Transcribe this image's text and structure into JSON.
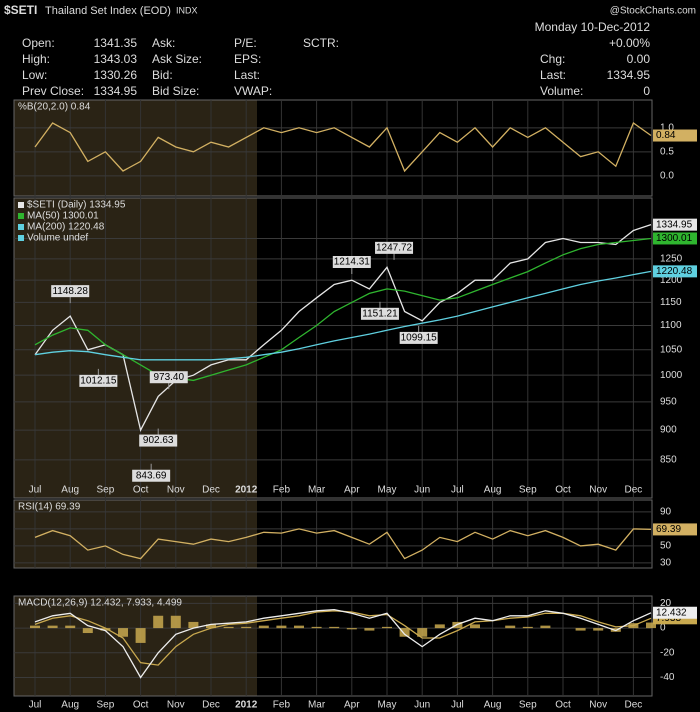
{
  "header": {
    "symbol": "$SETI",
    "name": "Thailand Set Index (EOD)",
    "exchange": "INDX",
    "source": "@StockCharts.com",
    "date": "Monday 10-Dec-2012",
    "change_pct": "+0.00%",
    "columns": [
      [
        {
          "label": "Open:",
          "value": "1341.35"
        },
        {
          "label": "High:",
          "value": "1343.03"
        },
        {
          "label": "Low:",
          "value": "1330.26"
        },
        {
          "label": "Prev Close:",
          "value": "1334.95"
        }
      ],
      [
        {
          "label": "Ask:"
        },
        {
          "label": "Ask Size:"
        },
        {
          "label": "Bid:"
        },
        {
          "label": "Bid Size:"
        }
      ],
      [
        {
          "label": "P/E:"
        },
        {
          "label": "EPS:"
        },
        {
          "label": "Last:"
        },
        {
          "label": "VWAP:"
        }
      ],
      [
        {
          "label": "SCTR:"
        }
      ]
    ],
    "right": [
      {
        "label": "Chg:",
        "value": "0.00"
      },
      {
        "label": "Last:",
        "value": "1334.95"
      },
      {
        "label": "Volume:",
        "value": "0"
      }
    ]
  },
  "chart_data": [
    {
      "type": "line",
      "title": "%B(20,2.0) 0.84",
      "color": "#d2b062",
      "values": [
        0.6,
        1.1,
        0.9,
        0.3,
        0.5,
        0.1,
        0.3,
        0.8,
        0.6,
        0.5,
        0.7,
        0.6,
        0.8,
        1.0,
        0.9,
        1.0,
        0.9,
        1.0,
        0.8,
        0.6,
        1.0,
        0.1,
        0.5,
        0.9,
        0.7,
        1.0,
        0.6,
        1.0,
        0.8,
        1.0,
        0.7,
        0.4,
        0.5,
        0.2,
        1.1,
        0.84
      ],
      "ylim": [
        -0.42,
        1.58
      ],
      "yticks": [
        {
          "value": 1,
          "label": "1.0"
        },
        0.5,
        {
          "value": 0,
          "label": "0.0"
        }
      ],
      "grid": true
    },
    {
      "type": "line",
      "log_scale": true,
      "grid": true,
      "categories": [
        "Jul",
        null,
        "Aug",
        null,
        "Sep",
        null,
        "Oct",
        null,
        "Nov",
        null,
        "Dec",
        null,
        "2012",
        null,
        "Feb",
        null,
        "Mar",
        null,
        "Apr",
        null,
        "May",
        null,
        "Jun",
        null,
        "Jul",
        null,
        "Aug",
        null,
        "Sep",
        null,
        "Oct",
        null,
        "Nov",
        null,
        "Dec",
        null
      ],
      "series": [
        {
          "name": "$SETI (Daily) 1334.95",
          "color": "#e6e6e6",
          "values": [
            1040,
            1090,
            1120,
            1050,
            1060,
            1040,
            900,
            960,
            990,
            1000,
            1020,
            1030,
            1030,
            1060,
            1090,
            1130,
            1160,
            1190,
            1200,
            1180,
            1230,
            1130,
            1110,
            1150,
            1170,
            1200,
            1200,
            1240,
            1250,
            1290,
            1300,
            1290,
            1290,
            1285,
            1320,
            1334.95
          ]
        },
        {
          "name": "MA(50) 1300.01",
          "color": "#2fb52f",
          "values": [
            1060,
            1080,
            1095,
            1090,
            1060,
            1040,
            1020,
            1000,
            995,
            990,
            1000,
            1010,
            1020,
            1035,
            1050,
            1075,
            1100,
            1130,
            1150,
            1170,
            1180,
            1175,
            1165,
            1155,
            1160,
            1175,
            1190,
            1205,
            1220,
            1240,
            1260,
            1275,
            1285,
            1290,
            1295,
            1300.01
          ]
        },
        {
          "name": "MA(200) 1220.48",
          "color": "#5fd0e0",
          "values": [
            1040,
            1045,
            1048,
            1046,
            1040,
            1035,
            1030,
            1030,
            1030,
            1030,
            1030,
            1032,
            1035,
            1040,
            1045,
            1052,
            1060,
            1068,
            1075,
            1082,
            1090,
            1098,
            1105,
            1112,
            1120,
            1130,
            1140,
            1150,
            1160,
            1170,
            1180,
            1190,
            1198,
            1205,
            1213,
            1220.48
          ]
        }
      ],
      "volume_label": "Volume undef",
      "annotations": [
        {
          "value": 1148.28,
          "label": "1148.28"
        },
        {
          "value": 1012.15,
          "label": "1012.15"
        },
        {
          "value": 973.4,
          "label": "973.40"
        },
        {
          "value": 902.63,
          "label": "902.63"
        },
        {
          "value": 843.69,
          "label": "843.69"
        },
        {
          "value": 1214.31,
          "label": "1214.31"
        },
        {
          "value": 1151.21,
          "label": "1151.21"
        },
        {
          "value": 1247.72,
          "label": "1247.72"
        },
        {
          "value": 1099.15,
          "label": "1099.15"
        }
      ],
      "ylim": [
        790,
        1405
      ],
      "yticks": [
        850,
        900,
        950,
        1000,
        1050,
        1100,
        1150,
        1200,
        1250,
        1300
      ]
    },
    {
      "type": "line",
      "title": "RSI(14) 69.39",
      "color": "#d2b062",
      "values": [
        60,
        68,
        62,
        45,
        50,
        40,
        35,
        58,
        55,
        52,
        58,
        55,
        60,
        66,
        65,
        70,
        65,
        68,
        60,
        52,
        66,
        35,
        45,
        60,
        55,
        66,
        58,
        68,
        62,
        68,
        60,
        50,
        52,
        45,
        70,
        69.39
      ],
      "ylim": [
        24,
        104
      ],
      "yticks": [
        30,
        50,
        70,
        90
      ],
      "grid": true
    },
    {
      "type": "line",
      "title": "MACD(12,26,9) 12.432, 7.933, 4.499",
      "grid": true,
      "categories": [
        "Jul",
        null,
        "Aug",
        null,
        "Sep",
        null,
        "Oct",
        null,
        "Nov",
        null,
        "Dec",
        null,
        "2012",
        null,
        "Feb",
        null,
        "Mar",
        null,
        "Apr",
        null,
        "May",
        null,
        "Jun",
        null,
        "Jul",
        null,
        "Aug",
        null,
        "Sep",
        null,
        "Oct",
        null,
        "Nov",
        null,
        "Dec",
        null
      ],
      "series": [
        {
          "type": "bar",
          "color": "#c9a94f",
          "values": [
            2,
            2,
            2,
            -4,
            -2,
            -7,
            -12,
            10,
            10,
            5,
            3,
            1,
            1,
            2,
            2,
            2,
            1,
            1,
            -1,
            -2,
            1,
            -7,
            -7,
            3,
            5,
            3,
            0,
            2,
            1,
            2,
            0,
            -2,
            -2,
            -3,
            4,
            4.499
          ]
        },
        {
          "color": "#c9a94f",
          "values": [
            3,
            8,
            10,
            6,
            0,
            -8,
            -28,
            -30,
            -15,
            -5,
            0,
            3,
            4,
            6,
            8,
            10,
            13,
            14,
            13,
            10,
            11,
            2,
            -8,
            -8,
            -2,
            5,
            6,
            8,
            9,
            12,
            12,
            10,
            5,
            1,
            2,
            7.933
          ]
        },
        {
          "color": "#eeeeee",
          "values": [
            5,
            10,
            12,
            2,
            -2,
            -15,
            -40,
            -20,
            -5,
            0,
            3,
            4,
            5,
            8,
            10,
            12,
            14,
            15,
            12,
            8,
            12,
            -5,
            -15,
            -5,
            3,
            8,
            6,
            10,
            10,
            14,
            12,
            8,
            3,
            -2,
            6,
            12.432
          ]
        }
      ],
      "ylim": [
        -55,
        26
      ],
      "yticks": [
        -40,
        -20,
        0,
        20
      ]
    }
  ]
}
